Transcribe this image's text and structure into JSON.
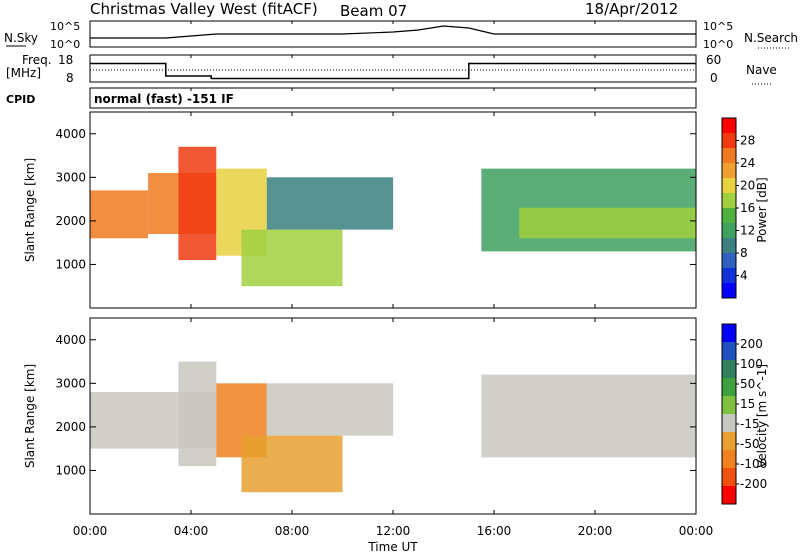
{
  "header": {
    "title": "Christmas Valley West (fitACF)",
    "beam": "Beam 07",
    "date": "18/Apr/2012"
  },
  "noise_panel": {
    "left_label": "N.Sky",
    "right_label": "N.Search",
    "left_ticks": [
      "10^5",
      "10^0"
    ],
    "right_ticks": [
      "10^5",
      "10^0"
    ]
  },
  "freq_panel": {
    "left_label_1": "Freq.",
    "left_label_2": "[MHz]",
    "right_label": "Nave",
    "left_ticks": [
      "18",
      "8"
    ],
    "right_ticks": [
      "60",
      "0"
    ]
  },
  "cpid_panel": {
    "label": "CPID",
    "text": "normal (fast) -151 IF"
  },
  "power_panel": {
    "ylabel": "Slant Range [km]",
    "yticks": [
      "4000",
      "3000",
      "2000",
      "1000"
    ],
    "colorbar_label": "Power [dB]",
    "colorbar_ticks": [
      "28",
      "24",
      "20",
      "16",
      "12",
      "8",
      "4"
    ],
    "colors": [
      "#ff0000",
      "#f03a10",
      "#f07a20",
      "#f0a030",
      "#e8d040",
      "#a0d040",
      "#50b040",
      "#40a060",
      "#3a8080",
      "#3060c0",
      "#1030d8",
      "#0000ff"
    ]
  },
  "velocity_panel": {
    "ylabel": "Slant Range [km]",
    "yticks": [
      "4000",
      "3000",
      "2000",
      "1000"
    ],
    "colorbar_label": "Velocity [m s^-1]",
    "colorbar_ticks": [
      "200",
      "100",
      "50",
      "15",
      "-15",
      "-50",
      "-100",
      "-200"
    ],
    "colors": [
      "#0000ff",
      "#2050c0",
      "#308060",
      "#40a040",
      "#80c040",
      "#c8c8c0",
      "#e8a030",
      "#f08020",
      "#f05010",
      "#ff0000"
    ]
  },
  "xaxis": {
    "label": "Time UT",
    "ticks": [
      "00:00",
      "04:00",
      "08:00",
      "12:00",
      "16:00",
      "20:00",
      "00:00"
    ]
  },
  "chart_data": [
    {
      "type": "line",
      "name": "N.Sky noise",
      "x": [
        0,
        1,
        2,
        3,
        4,
        5,
        6,
        8,
        10,
        12,
        13,
        14,
        15,
        16,
        18,
        20,
        22,
        24
      ],
      "values": [
        1,
        1,
        1,
        1,
        1.5,
        2,
        2,
        2,
        2,
        2.5,
        3,
        4,
        3.5,
        2,
        2,
        2,
        2,
        2
      ],
      "xlabel": "Time UT",
      "xlim": [
        0,
        24
      ]
    },
    {
      "type": "line",
      "name": "Frequency",
      "x": [
        0,
        3,
        3,
        4.8,
        4.8,
        15,
        15,
        24
      ],
      "values": [
        15,
        15,
        10,
        10,
        9,
        9,
        15,
        15
      ],
      "ylabel": "[MHz]",
      "ylim": [
        8,
        18
      ],
      "xlim": [
        0,
        24
      ]
    },
    {
      "type": "heatmap",
      "name": "Power",
      "ylabel": "Slant Range [km]",
      "xlabel": "Time UT",
      "xlim": [
        0,
        24
      ],
      "ylim": [
        0,
        4500
      ],
      "colorbar": "Power [dB]",
      "colorbar_range": [
        0,
        30
      ],
      "regions": [
        {
          "t0": 0,
          "t1": 2.3,
          "r0": 1600,
          "r1": 2700,
          "value": 24
        },
        {
          "t0": 2.3,
          "t1": 5,
          "r0": 1700,
          "r1": 3100,
          "value": 24
        },
        {
          "t0": 3.5,
          "t1": 5,
          "r0": 1100,
          "r1": 3700,
          "value": 28
        },
        {
          "t0": 5,
          "t1": 7,
          "r0": 1200,
          "r1": 3200,
          "value": 20
        },
        {
          "t0": 6,
          "t1": 10,
          "r0": 500,
          "r1": 1800,
          "value": 16
        },
        {
          "t0": 7,
          "t1": 12,
          "r0": 1800,
          "r1": 3000,
          "value": 8
        },
        {
          "t0": 15.5,
          "t1": 24,
          "r0": 1300,
          "r1": 3200,
          "value": 12
        },
        {
          "t0": 17,
          "t1": 24,
          "r0": 1600,
          "r1": 2300,
          "value": 16
        }
      ]
    },
    {
      "type": "heatmap",
      "name": "Velocity",
      "ylabel": "Slant Range [km]",
      "xlabel": "Time UT",
      "xlim": [
        0,
        24
      ],
      "ylim": [
        0,
        4500
      ],
      "colorbar": "Velocity [m s^-1]",
      "colorbar_range": [
        -250,
        250
      ],
      "regions": [
        {
          "t0": 0,
          "t1": 5,
          "r0": 1500,
          "r1": 2800,
          "value": 0
        },
        {
          "t0": 3.5,
          "t1": 5,
          "r0": 1100,
          "r1": 3500,
          "value": -40
        },
        {
          "t0": 5,
          "t1": 7,
          "r0": 1300,
          "r1": 3000,
          "value": -120
        },
        {
          "t0": 6,
          "t1": 10,
          "r0": 500,
          "r1": 1800,
          "value": -70
        },
        {
          "t0": 7,
          "t1": 12,
          "r0": 1800,
          "r1": 3000,
          "value": 0
        },
        {
          "t0": 15.5,
          "t1": 24,
          "r0": 1300,
          "r1": 3200,
          "value": 0
        }
      ]
    }
  ]
}
